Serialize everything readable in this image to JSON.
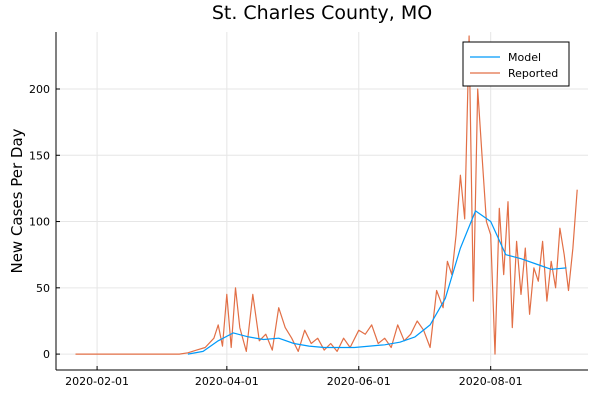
{
  "chart_data": {
    "type": "line",
    "title": "St. Charles County, MO",
    "xlabel": "",
    "ylabel": "New Cases Per Day",
    "x_start_date": "2020-01-22",
    "x_ticks": [
      "2020-02-01",
      "2020-04-01",
      "2020-06-01",
      "2020-08-01"
    ],
    "xlim": [
      "2020-01-13",
      "2020-09-15"
    ],
    "y_ticks": [
      0,
      50,
      100,
      150,
      200
    ],
    "ylim": [
      -12,
      243
    ],
    "grid": true,
    "legend": "top-right",
    "series": [
      {
        "name": "Model",
        "color": "#009AFA",
        "x": [
          "2020-03-14",
          "2020-03-21",
          "2020-03-28",
          "2020-04-04",
          "2020-04-11",
          "2020-04-18",
          "2020-04-25",
          "2020-05-02",
          "2020-05-09",
          "2020-05-16",
          "2020-05-23",
          "2020-05-30",
          "2020-06-06",
          "2020-06-13",
          "2020-06-20",
          "2020-06-27",
          "2020-07-04",
          "2020-07-11",
          "2020-07-18",
          "2020-07-25",
          "2020-08-01",
          "2020-08-08",
          "2020-08-15",
          "2020-08-22",
          "2020-08-29",
          "2020-09-05"
        ],
        "values": [
          0,
          2,
          10,
          16,
          13,
          11,
          12,
          8,
          6,
          5,
          5,
          5,
          6,
          7,
          9,
          13,
          22,
          42,
          80,
          108,
          100,
          75,
          72,
          68,
          64,
          65
        ]
      },
      {
        "name": "Reported",
        "color": "#E26F46",
        "x": [
          "2020-01-22",
          "2020-03-10",
          "2020-03-14",
          "2020-03-18",
          "2020-03-22",
          "2020-03-26",
          "2020-03-28",
          "2020-03-30",
          "2020-04-01",
          "2020-04-03",
          "2020-04-05",
          "2020-04-07",
          "2020-04-10",
          "2020-04-13",
          "2020-04-16",
          "2020-04-19",
          "2020-04-22",
          "2020-04-25",
          "2020-04-28",
          "2020-05-01",
          "2020-05-04",
          "2020-05-07",
          "2020-05-10",
          "2020-05-13",
          "2020-05-16",
          "2020-05-19",
          "2020-05-22",
          "2020-05-25",
          "2020-05-28",
          "2020-06-01",
          "2020-06-04",
          "2020-06-07",
          "2020-06-10",
          "2020-06-13",
          "2020-06-16",
          "2020-06-19",
          "2020-06-22",
          "2020-06-25",
          "2020-06-28",
          "2020-07-01",
          "2020-07-04",
          "2020-07-07",
          "2020-07-10",
          "2020-07-12",
          "2020-07-14",
          "2020-07-16",
          "2020-07-18",
          "2020-07-20",
          "2020-07-22",
          "2020-07-24",
          "2020-07-26",
          "2020-07-28",
          "2020-07-30",
          "2020-08-01",
          "2020-08-03",
          "2020-08-05",
          "2020-08-07",
          "2020-08-09",
          "2020-08-11",
          "2020-08-13",
          "2020-08-15",
          "2020-08-17",
          "2020-08-19",
          "2020-08-21",
          "2020-08-23",
          "2020-08-25",
          "2020-08-27",
          "2020-08-29",
          "2020-08-31",
          "2020-09-02",
          "2020-09-04",
          "2020-09-06",
          "2020-09-08",
          "2020-09-10"
        ],
        "values": [
          0,
          0,
          1,
          3,
          5,
          12,
          22,
          6,
          45,
          5,
          50,
          20,
          2,
          45,
          10,
          15,
          3,
          35,
          20,
          12,
          2,
          18,
          8,
          12,
          3,
          8,
          2,
          12,
          5,
          18,
          15,
          22,
          8,
          12,
          5,
          22,
          10,
          15,
          25,
          18,
          5,
          48,
          35,
          70,
          60,
          90,
          135,
          102,
          240,
          40,
          200,
          150,
          100,
          90,
          0,
          110,
          60,
          115,
          20,
          85,
          45,
          80,
          30,
          65,
          55,
          85,
          40,
          70,
          50,
          95,
          75,
          48,
          80,
          124
        ]
      }
    ]
  }
}
